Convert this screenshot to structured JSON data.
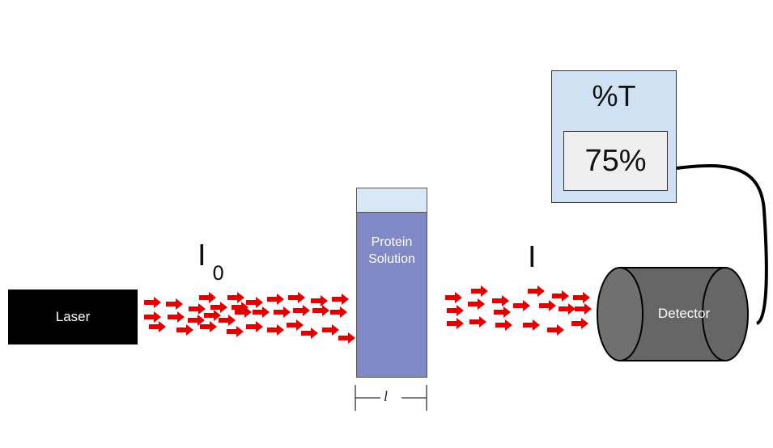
{
  "laser": {
    "label": "Laser"
  },
  "sample": {
    "label_line1": "Protein",
    "label_line2": "Solution"
  },
  "beam": {
    "incident_symbol": "I",
    "incident_subscript": "0",
    "transmitted_symbol": "I",
    "color": "#e00000"
  },
  "path_length": {
    "label": "l"
  },
  "meter": {
    "title": "%T",
    "value": "75%"
  },
  "detector": {
    "label": "Detector"
  },
  "colors": {
    "laser": "#000000",
    "cuvette_liquid": "#8088c6",
    "cuvette_air": "#d9e6f3",
    "meter_panel": "#cfe1f2",
    "detector": "#666666",
    "arrow": "#e00000"
  }
}
